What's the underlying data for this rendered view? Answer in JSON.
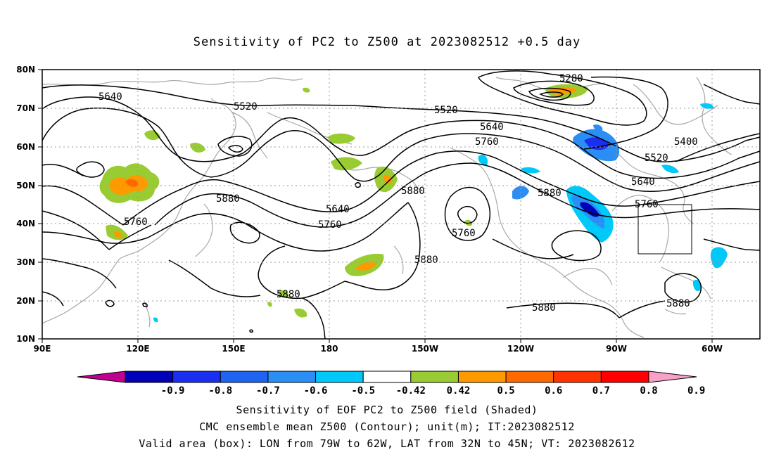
{
  "title": "Sensitivity of PC2 to Z500 at 2023082512 +0.5 day",
  "map": {
    "lat_ticks": [
      "80N",
      "70N",
      "60N",
      "50N",
      "40N",
      "30N",
      "20N",
      "10N"
    ],
    "lon_ticks": [
      "90E",
      "120E",
      "150E",
      "180",
      "150W",
      "120W",
      "90W",
      "60W"
    ],
    "extent": {
      "lon_min": 90,
      "lon_max": 315,
      "lat_min": 10,
      "lat_max": 80
    },
    "grid": "dotted",
    "valid_box": {
      "lon_from": "79W",
      "lon_to": "62W",
      "lat_from": "32N",
      "lat_to": "45N"
    },
    "contour_labels": [
      "5280",
      "5400",
      "5520",
      "5520",
      "5520",
      "5640",
      "5640",
      "5640",
      "5640",
      "5760",
      "5760",
      "5760",
      "5760",
      "5760",
      "5880",
      "5880",
      "5880",
      "5880",
      "5880",
      "5880",
      "5880"
    ]
  },
  "colorbar": {
    "labels": [
      "-0.9",
      "-0.8",
      "-0.7",
      "-0.6",
      "-0.5",
      "-0.42",
      "0.42",
      "0.5",
      "0.6",
      "0.7",
      "0.8",
      "0.9"
    ],
    "colors": [
      "#c00090",
      "#0000b8",
      "#1a2fef",
      "#1e64f0",
      "#2b8ef5",
      "#00c8f8",
      "#ffffff",
      "#99cc33",
      "#ff9900",
      "#ff6a00",
      "#ff3300",
      "#ff0000",
      "#f7a0c8"
    ]
  },
  "captions": {
    "line1": "Sensitivity of EOF PC2 to Z500 field (Shaded)",
    "line2": "CMC ensemble mean Z500 (Contour); unit(m); IT:2023082512",
    "line3": "Valid area (box): LON from 79W to 62W, LAT from 32N to 45N; VT: 2023082612"
  }
}
